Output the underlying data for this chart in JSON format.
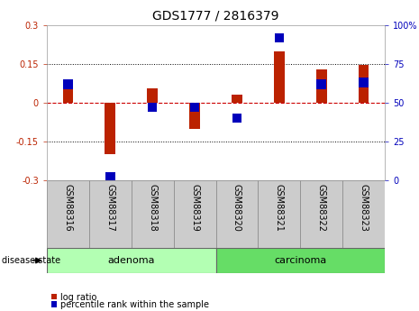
{
  "title": "GDS1777 / 2816379",
  "samples": [
    "GSM88316",
    "GSM88317",
    "GSM88318",
    "GSM88319",
    "GSM88320",
    "GSM88321",
    "GSM88322",
    "GSM88323"
  ],
  "log_ratio": [
    0.08,
    -0.2,
    0.055,
    -0.1,
    0.03,
    0.2,
    0.13,
    0.145
  ],
  "percentile_rank": [
    62,
    2,
    47,
    47,
    40,
    92,
    62,
    63
  ],
  "groups": [
    {
      "label": "adenoma",
      "start": 0,
      "end": 4,
      "color": "#b3ffb3"
    },
    {
      "label": "carcinoma",
      "start": 4,
      "end": 8,
      "color": "#66dd66"
    }
  ],
  "ylim_left": [
    -0.3,
    0.3
  ],
  "ylim_right": [
    0,
    100
  ],
  "yticks_left": [
    -0.3,
    -0.15,
    0.0,
    0.15,
    0.3
  ],
  "ytick_labels_left": [
    "-0.3",
    "-0.15",
    "0",
    "0.15",
    "0.3"
  ],
  "yticks_right": [
    0,
    25,
    50,
    75,
    100
  ],
  "ytick_labels_right": [
    "0",
    "25",
    "50",
    "75",
    "100%"
  ],
  "bar_color_red": "#bb2200",
  "bar_color_blue": "#0000bb",
  "zero_line_color": "#cc0000",
  "grid_color": "#000000",
  "bg_color": "#ffffff",
  "bar_width": 0.25,
  "disease_state_label": "disease state",
  "legend_log_ratio": "log ratio",
  "legend_percentile": "percentile rank within the sample",
  "title_fontsize": 10,
  "tick_fontsize": 7,
  "label_fontsize": 7,
  "group_fontsize": 8
}
